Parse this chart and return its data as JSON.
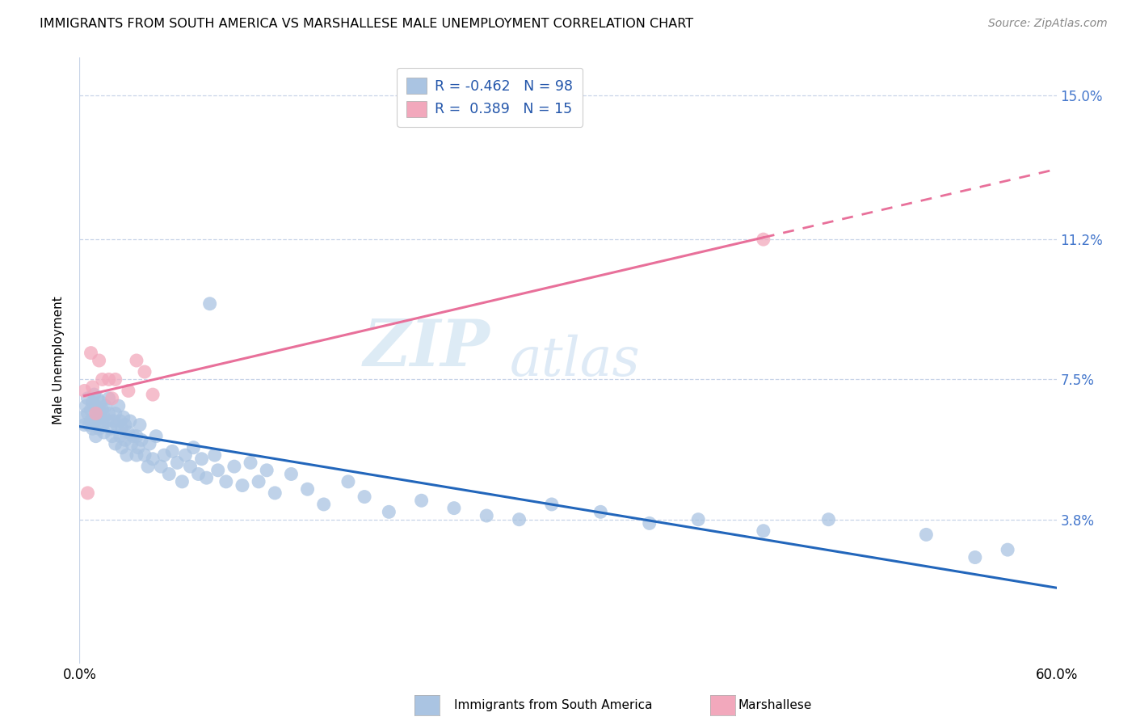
{
  "title": "IMMIGRANTS FROM SOUTH AMERICA VS MARSHALLESE MALE UNEMPLOYMENT CORRELATION CHART",
  "source": "Source: ZipAtlas.com",
  "ylabel": "Male Unemployment",
  "xlim": [
    0.0,
    0.6
  ],
  "ylim": [
    0.0,
    0.16
  ],
  "yticks": [
    0.038,
    0.075,
    0.112,
    0.15
  ],
  "ytick_labels": [
    "3.8%",
    "7.5%",
    "11.2%",
    "15.0%"
  ],
  "xticks": [
    0.0,
    0.1,
    0.2,
    0.3,
    0.4,
    0.5,
    0.6
  ],
  "xtick_labels": [
    "0.0%",
    "",
    "",
    "",
    "",
    "",
    "60.0%"
  ],
  "legend_label1": "Immigrants from South America",
  "legend_label2": "Marshallese",
  "r1": -0.462,
  "n1": 98,
  "r2": 0.389,
  "n2": 15,
  "color1": "#aac4e2",
  "color2": "#f2a8bc",
  "line_color1": "#2266bb",
  "line_color2": "#e8709a",
  "scatter1_x": [
    0.002,
    0.003,
    0.004,
    0.005,
    0.005,
    0.006,
    0.007,
    0.007,
    0.008,
    0.008,
    0.009,
    0.01,
    0.01,
    0.01,
    0.011,
    0.011,
    0.012,
    0.012,
    0.013,
    0.013,
    0.014,
    0.014,
    0.015,
    0.015,
    0.016,
    0.017,
    0.018,
    0.018,
    0.019,
    0.02,
    0.021,
    0.022,
    0.022,
    0.023,
    0.024,
    0.025,
    0.025,
    0.026,
    0.026,
    0.027,
    0.028,
    0.028,
    0.029,
    0.03,
    0.031,
    0.032,
    0.033,
    0.035,
    0.035,
    0.036,
    0.037,
    0.038,
    0.04,
    0.042,
    0.043,
    0.045,
    0.047,
    0.05,
    0.052,
    0.055,
    0.057,
    0.06,
    0.063,
    0.065,
    0.068,
    0.07,
    0.073,
    0.075,
    0.078,
    0.08,
    0.083,
    0.085,
    0.09,
    0.095,
    0.1,
    0.105,
    0.11,
    0.115,
    0.12,
    0.13,
    0.14,
    0.15,
    0.165,
    0.175,
    0.19,
    0.21,
    0.23,
    0.25,
    0.27,
    0.29,
    0.32,
    0.35,
    0.38,
    0.42,
    0.46,
    0.52,
    0.55,
    0.57
  ],
  "scatter1_y": [
    0.065,
    0.063,
    0.068,
    0.066,
    0.07,
    0.063,
    0.067,
    0.064,
    0.069,
    0.062,
    0.071,
    0.06,
    0.064,
    0.068,
    0.066,
    0.07,
    0.062,
    0.067,
    0.065,
    0.069,
    0.063,
    0.067,
    0.061,
    0.065,
    0.068,
    0.064,
    0.07,
    0.066,
    0.062,
    0.06,
    0.064,
    0.058,
    0.066,
    0.063,
    0.068,
    0.06,
    0.064,
    0.057,
    0.062,
    0.065,
    0.059,
    0.063,
    0.055,
    0.061,
    0.064,
    0.058,
    0.06,
    0.055,
    0.06,
    0.057,
    0.063,
    0.059,
    0.055,
    0.052,
    0.058,
    0.054,
    0.06,
    0.052,
    0.055,
    0.05,
    0.056,
    0.053,
    0.048,
    0.055,
    0.052,
    0.057,
    0.05,
    0.054,
    0.049,
    0.095,
    0.055,
    0.051,
    0.048,
    0.052,
    0.047,
    0.053,
    0.048,
    0.051,
    0.045,
    0.05,
    0.046,
    0.042,
    0.048,
    0.044,
    0.04,
    0.043,
    0.041,
    0.039,
    0.038,
    0.042,
    0.04,
    0.037,
    0.038,
    0.035,
    0.038,
    0.034,
    0.028,
    0.03
  ],
  "scatter2_x": [
    0.003,
    0.005,
    0.007,
    0.008,
    0.01,
    0.012,
    0.014,
    0.018,
    0.02,
    0.022,
    0.03,
    0.035,
    0.04,
    0.045,
    0.42
  ],
  "scatter2_y": [
    0.072,
    0.045,
    0.082,
    0.073,
    0.066,
    0.08,
    0.075,
    0.075,
    0.07,
    0.075,
    0.072,
    0.08,
    0.077,
    0.071,
    0.112
  ],
  "watermark_zip": "ZIP",
  "watermark_atlas": "atlas",
  "background_color": "#ffffff",
  "grid_color": "#c8d4e8",
  "tick_color_right": "#4477cc"
}
